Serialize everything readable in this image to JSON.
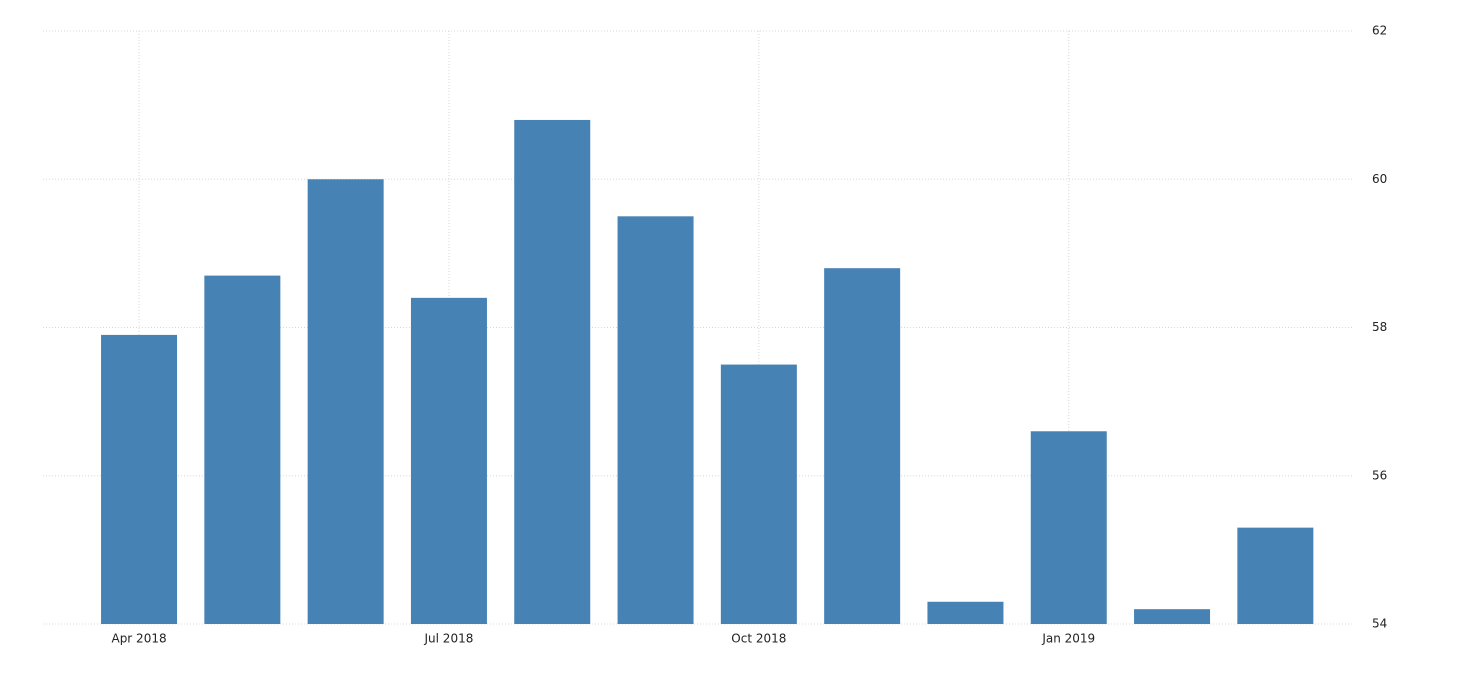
{
  "chart_data": {
    "type": "bar",
    "categories": [
      "Apr 2018",
      null,
      null,
      "Jul 2018",
      null,
      null,
      "Oct 2018",
      null,
      null,
      "Jan 2019",
      null,
      null
    ],
    "values": [
      57.9,
      58.7,
      60.0,
      58.4,
      60.8,
      59.5,
      57.5,
      58.8,
      54.3,
      56.6,
      54.2,
      55.3
    ],
    "color": "#4682b4",
    "ylim": [
      54,
      62
    ],
    "yticks": [
      54,
      56,
      58,
      60,
      62
    ],
    "grid": true
  }
}
